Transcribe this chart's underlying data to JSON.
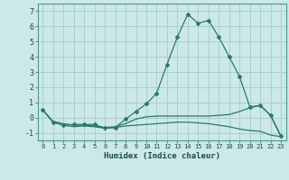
{
  "xlabel": "Humidex (Indice chaleur)",
  "background_color": "#cce8e8",
  "grid_color": "#aad0d0",
  "line_color": "#2a7a6a",
  "x_ticks": [
    0,
    1,
    2,
    3,
    4,
    5,
    6,
    7,
    8,
    9,
    10,
    11,
    12,
    13,
    14,
    15,
    16,
    17,
    18,
    19,
    20,
    21,
    22,
    23
  ],
  "ylim": [
    -1.5,
    7.5
  ],
  "yticks": [
    -1,
    0,
    1,
    2,
    3,
    4,
    5,
    6,
    7
  ],
  "series1_x": [
    0,
    1,
    2,
    3,
    4,
    5,
    6,
    7,
    8,
    9,
    10,
    11,
    12,
    13,
    14,
    15,
    16,
    17,
    18,
    19,
    20,
    21,
    22,
    23
  ],
  "series1_y": [
    0.5,
    -0.3,
    -0.5,
    -0.45,
    -0.45,
    -0.45,
    -0.7,
    -0.65,
    -0.1,
    0.4,
    0.9,
    1.6,
    3.5,
    5.3,
    6.8,
    6.2,
    6.4,
    5.3,
    4.0,
    2.7,
    0.7,
    0.8,
    0.15,
    -1.2
  ],
  "series2_x": [
    0,
    1,
    2,
    3,
    4,
    5,
    6,
    7,
    8,
    9,
    10,
    11,
    12,
    13,
    14,
    15,
    16,
    17,
    18,
    19,
    20,
    21,
    22,
    23
  ],
  "series2_y": [
    0.5,
    -0.3,
    -0.5,
    -0.6,
    -0.55,
    -0.6,
    -0.7,
    -0.65,
    -0.55,
    -0.5,
    -0.45,
    -0.4,
    -0.35,
    -0.3,
    -0.3,
    -0.35,
    -0.4,
    -0.5,
    -0.6,
    -0.75,
    -0.85,
    -0.9,
    -1.15,
    -1.25
  ],
  "series3_x": [
    0,
    1,
    2,
    3,
    4,
    5,
    6,
    7,
    8,
    9,
    10,
    11,
    12,
    13,
    14,
    15,
    16,
    17,
    18,
    19,
    20,
    21,
    22,
    23
  ],
  "series3_y": [
    0.5,
    -0.25,
    -0.4,
    -0.5,
    -0.5,
    -0.55,
    -0.65,
    -0.6,
    -0.4,
    -0.1,
    0.05,
    0.1,
    0.1,
    0.1,
    0.1,
    0.1,
    0.1,
    0.15,
    0.2,
    0.4,
    0.65,
    0.8,
    0.15,
    -1.25
  ]
}
